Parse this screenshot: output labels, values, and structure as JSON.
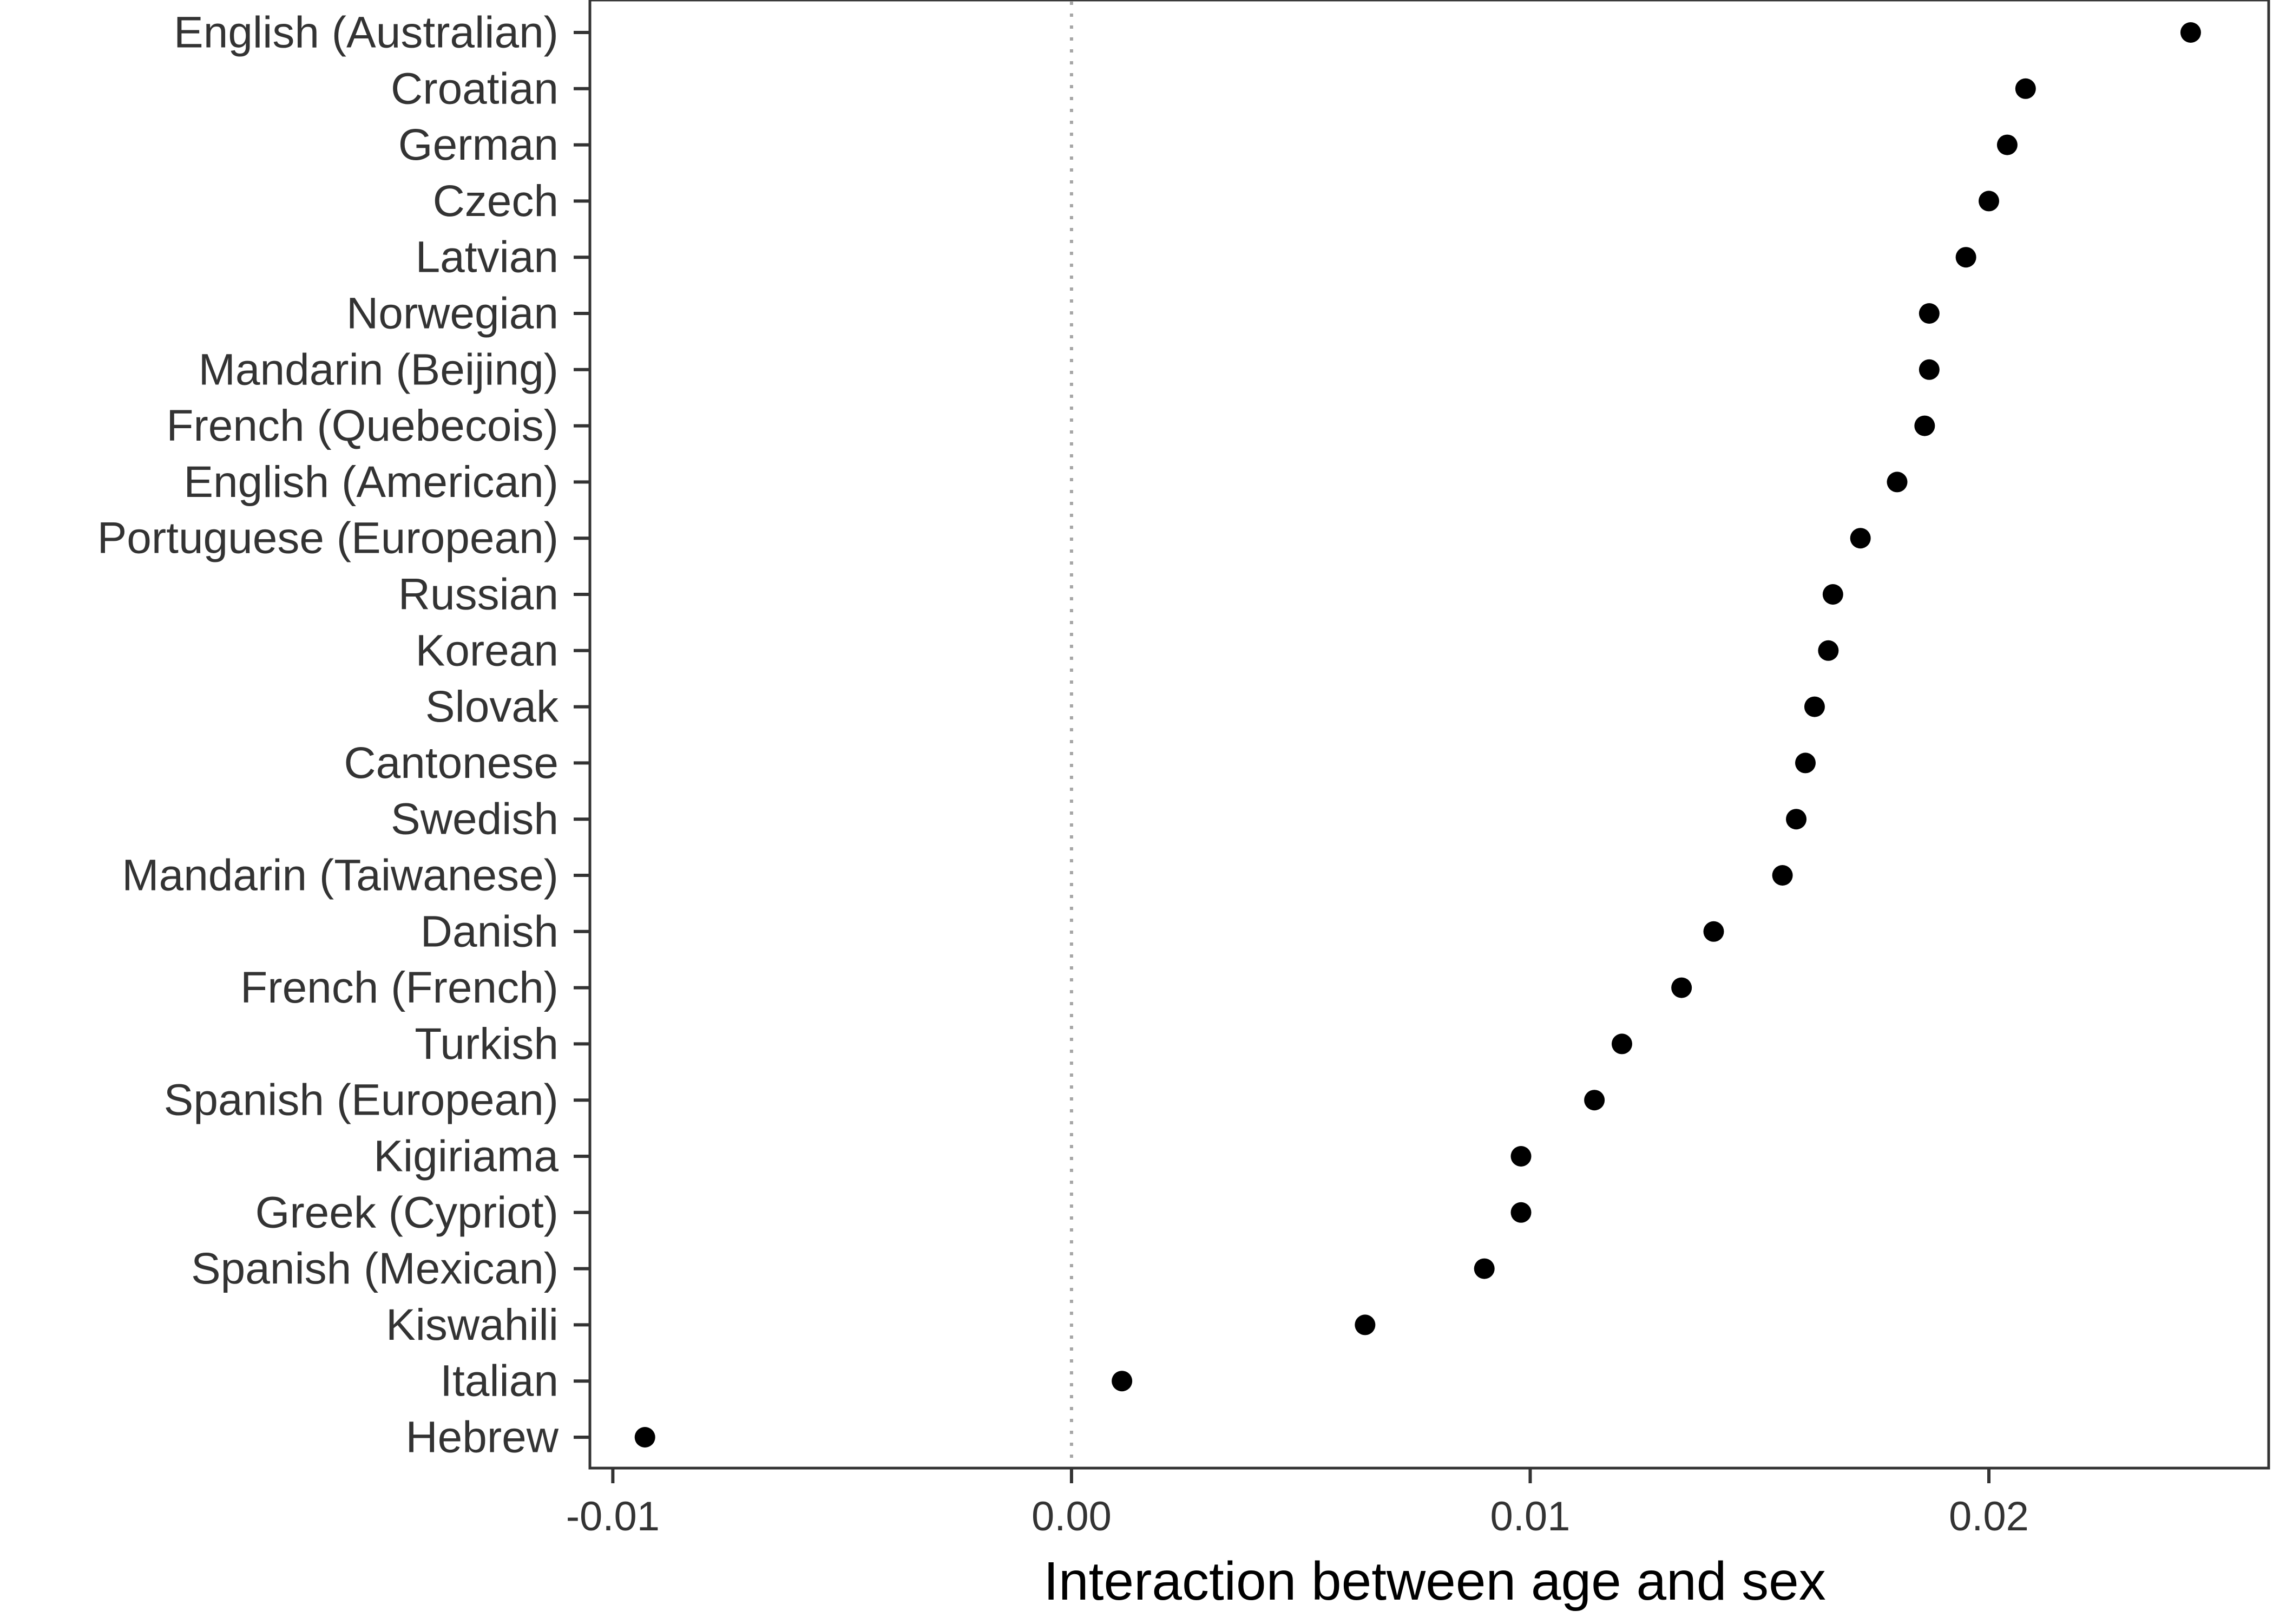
{
  "chart_data": {
    "type": "scatter",
    "xlabel": "Interaction between age and sex",
    "ylabel": "",
    "xlim": [
      -0.0105,
      0.0261
    ],
    "x_ticks": [
      -0.01,
      0.0,
      0.01,
      0.02
    ],
    "x_tick_labels": [
      "-0.01",
      "0.00",
      "0.01",
      "0.02"
    ],
    "reference_line": {
      "x": 0.0,
      "style": "dotted"
    },
    "grid": false,
    "legend": "none",
    "point_color": "#000000",
    "categories": [
      "English (Australian)",
      "Croatian",
      "German",
      "Czech",
      "Latvian",
      "Norwegian",
      "Mandarin (Beijing)",
      "French (Quebecois)",
      "English (American)",
      "Portuguese (European)",
      "Russian",
      "Korean",
      "Slovak",
      "Cantonese",
      "Swedish",
      "Mandarin (Taiwanese)",
      "Danish",
      "French (French)",
      "Turkish",
      "Spanish (European)",
      "Kigiriama",
      "Greek (Cypriot)",
      "Spanish (Mexican)",
      "Kiswahili",
      "Italian",
      "Hebrew"
    ],
    "values": [
      0.0244,
      0.0208,
      0.0204,
      0.02,
      0.0195,
      0.0187,
      0.0187,
      0.0186,
      0.018,
      0.0172,
      0.0166,
      0.0165,
      0.0162,
      0.016,
      0.0158,
      0.0155,
      0.014,
      0.0133,
      0.012,
      0.0114,
      0.0098,
      0.0098,
      0.009,
      0.0064,
      0.0011,
      -0.0093
    ]
  }
}
